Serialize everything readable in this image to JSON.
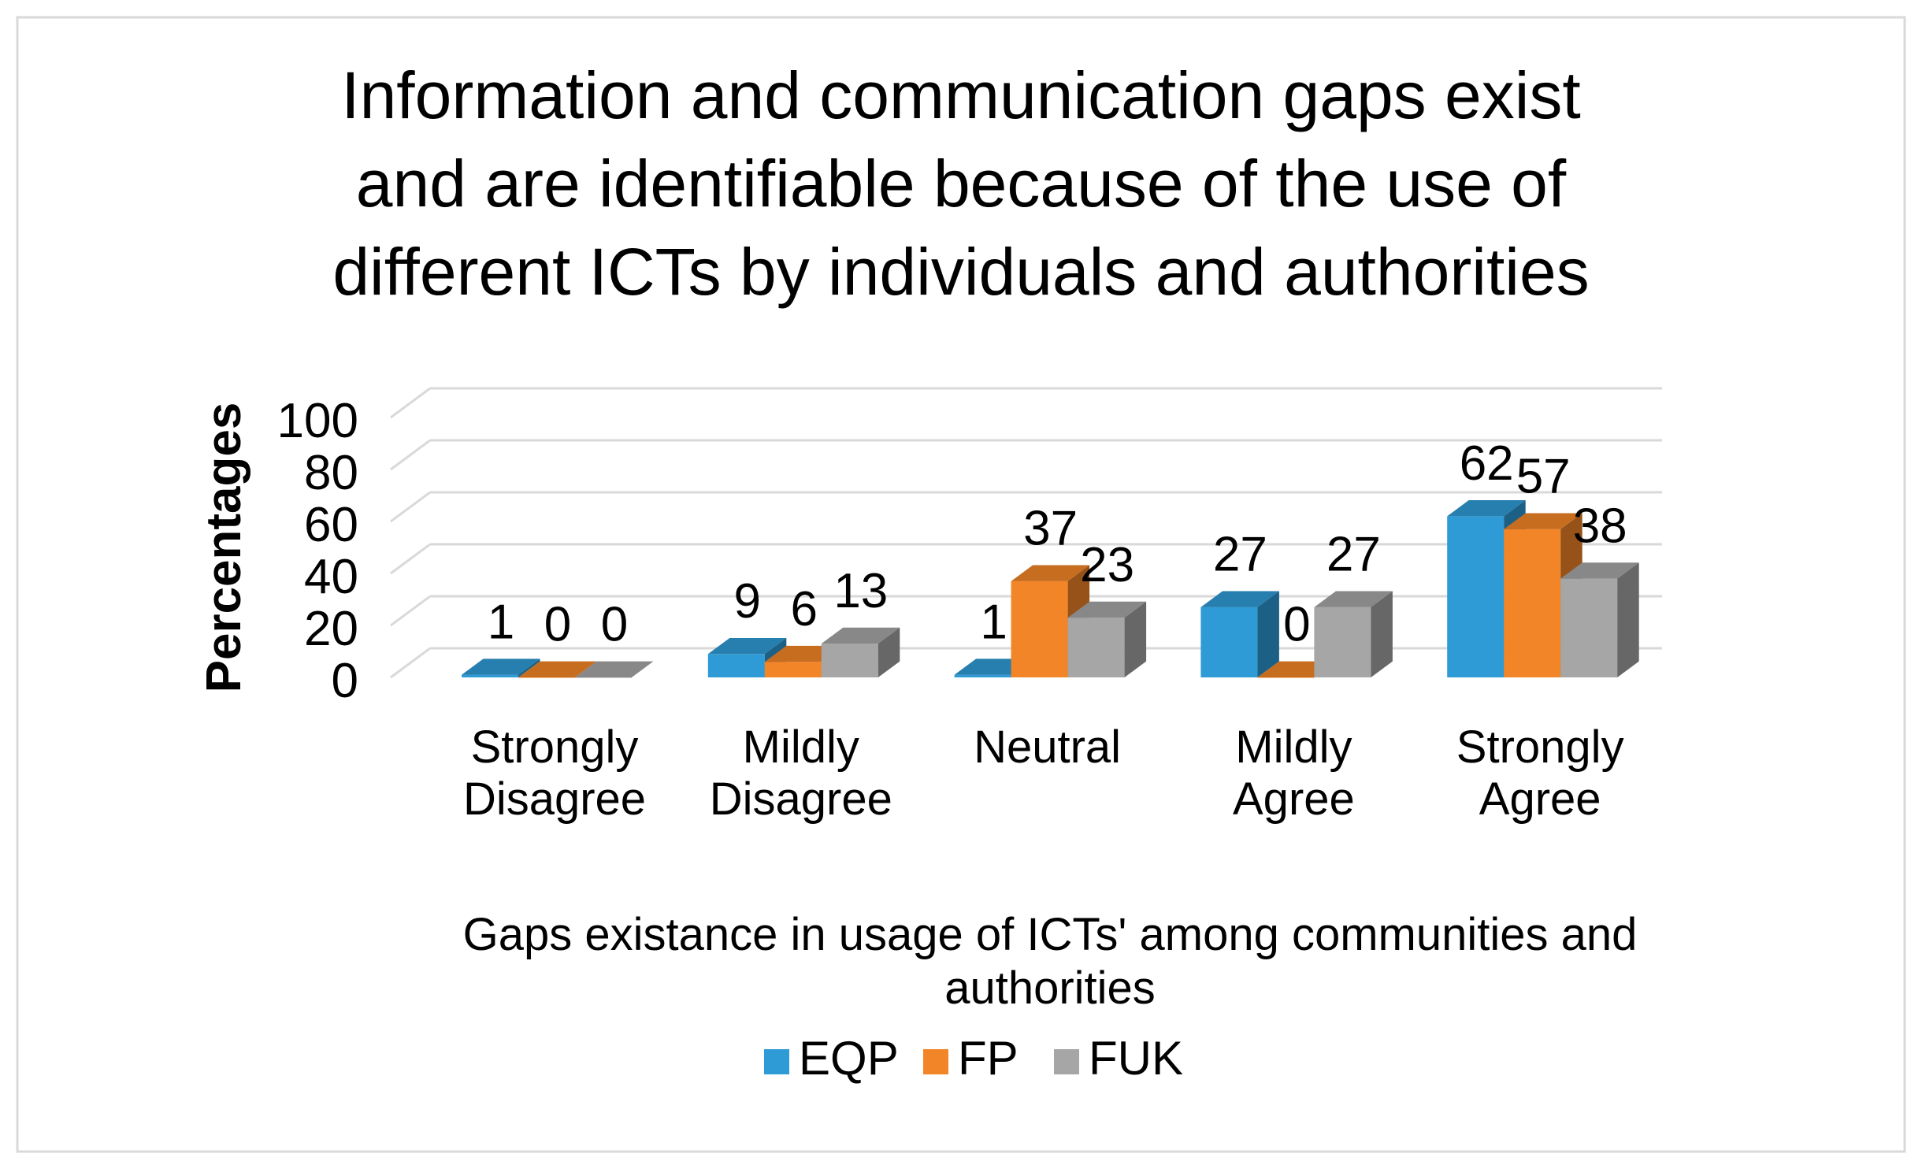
{
  "chart_data": {
    "type": "bar",
    "style": "3d-clustered-column",
    "title_lines": [
      "Information and communication gaps exist",
      "and are identifiable because of the use of",
      "different ICTs by individuals and authorities"
    ],
    "categories": [
      [
        "Strongly",
        "Disagree"
      ],
      [
        "Mildly",
        "Disagree"
      ],
      [
        "Neutral"
      ],
      [
        "Mildly",
        "Agree"
      ],
      [
        "Strongly",
        "Agree"
      ]
    ],
    "series": [
      {
        "name": "EQP",
        "color": "#2E9BD6",
        "values": [
          1,
          9,
          1,
          27,
          62
        ]
      },
      {
        "name": "FP",
        "color": "#F28527",
        "values": [
          0,
          6,
          37,
          0,
          57
        ]
      },
      {
        "name": "FUK",
        "color": "#A6A6A6",
        "values": [
          0,
          13,
          23,
          27,
          38
        ]
      }
    ],
    "ylabel": "Percentages",
    "xlabel_lines": [
      "Gaps existance in usage of ICTs' among communities and",
      "authorities"
    ],
    "ylim": [
      0,
      100
    ],
    "yticks": [
      0,
      20,
      40,
      60,
      80,
      100
    ],
    "gridlines": true,
    "legend_position": "bottom",
    "frame_color": "#D9D9D9",
    "grid_color": "#D9D9D9"
  }
}
